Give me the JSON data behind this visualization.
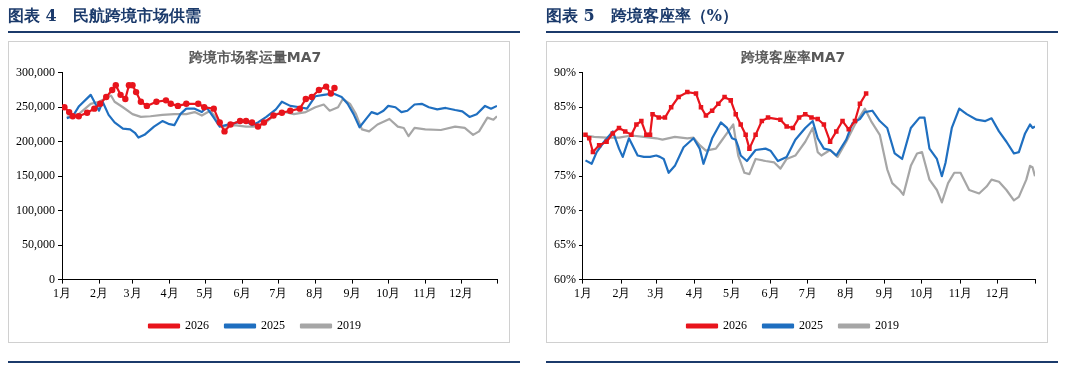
{
  "chart_data": [
    {
      "type": "line",
      "title": "图表 4　民航跨境市场供需",
      "subtitle": "跨境市场客运量MA7",
      "legend": "bottom",
      "xlim": [
        "--01-01",
        "--12-31"
      ],
      "xticks": [
        {
          "value": "--01-01",
          "label": "1月"
        },
        {
          "value": "--02-01",
          "label": "2月"
        },
        {
          "value": "--03-01",
          "label": "3月"
        },
        {
          "value": "--04-01",
          "label": "4月"
        },
        {
          "value": "--05-01",
          "label": "5月"
        },
        {
          "value": "--06-01",
          "label": "6月"
        },
        {
          "value": "--07-01",
          "label": "7月"
        },
        {
          "value": "--08-01",
          "label": "8月"
        },
        {
          "value": "--09-01",
          "label": "9月"
        },
        {
          "value": "--10-01",
          "label": "10月"
        },
        {
          "value": "--11-01",
          "label": "11月"
        },
        {
          "value": "--12-01",
          "label": "12月"
        },
        {
          "value": "--12-31",
          "label": null
        }
      ],
      "ylim": [
        0,
        300000
      ],
      "yticks": [
        {
          "value": 0,
          "label": "0"
        },
        {
          "value": 50000,
          "label": "50,000"
        },
        {
          "value": 100000,
          "label": "100,000"
        },
        {
          "value": 150000,
          "label": "150,000"
        },
        {
          "value": 200000,
          "label": "200,000"
        },
        {
          "value": 250000,
          "label": "250,000"
        },
        {
          "value": 300000,
          "label": "300,000"
        }
      ],
      "series": [
        {
          "name": "2026",
          "color": "#e8141c",
          "marker": "circle",
          "x": [
            "--01-03",
            "--01-07",
            "--01-10",
            "--01-15",
            "--01-22",
            "--01-28",
            "--02-02",
            "--02-07",
            "--02-12",
            "--02-15",
            "--02-19",
            "--02-23",
            "--02-26",
            "--03-01",
            "--03-04",
            "--03-08",
            "--03-13",
            "--03-21",
            "--03-29",
            "--04-02",
            "--04-08",
            "--04-15",
            "--04-25",
            "--04-30",
            "--05-08",
            "--05-13",
            "--05-17",
            "--05-22",
            "--05-30",
            "--06-04",
            "--06-09",
            "--06-14",
            "--06-19",
            "--06-27",
            "--07-04",
            "--07-11",
            "--07-19",
            "--07-24",
            "--07-29",
            "--08-04",
            "--08-10",
            "--08-14",
            "--08-17"
          ],
          "values": [
            250000,
            243000,
            237000,
            237000,
            242000,
            248000,
            255000,
            265000,
            275000,
            282000,
            268000,
            262000,
            282000,
            282000,
            272000,
            258000,
            252000,
            258000,
            260000,
            255000,
            252000,
            255000,
            255000,
            250000,
            248000,
            228000,
            215000,
            225000,
            230000,
            230000,
            228000,
            222000,
            228000,
            238000,
            242000,
            245000,
            248000,
            262000,
            265000,
            275000,
            280000,
            270000,
            278000
          ]
        },
        {
          "name": "2025",
          "color": "#1f6fc0",
          "marker": "none",
          "x": [
            "--01-05",
            "--01-10",
            "--01-15",
            "--01-25",
            "--02-01",
            "--02-04",
            "--02-09",
            "--02-14",
            "--02-21",
            "--02-27",
            "--03-03",
            "--03-06",
            "--03-11",
            "--03-19",
            "--03-26",
            "--03-31",
            "--04-05",
            "--04-10",
            "--04-15",
            "--04-22",
            "--04-28",
            "--05-02",
            "--05-08",
            "--05-13",
            "--05-20",
            "--05-28",
            "--06-04",
            "--06-09",
            "--06-14",
            "--06-21",
            "--06-29",
            "--07-04",
            "--07-11",
            "--07-19",
            "--07-25",
            "--08-01",
            "--08-08",
            "--08-16",
            "--08-23",
            "--08-28",
            "--09-02",
            "--09-07",
            "--09-12",
            "--09-17",
            "--09-22",
            "--09-27",
            "--10-01",
            "--10-07",
            "--10-12",
            "--10-17",
            "--10-23",
            "--10-29",
            "--11-04",
            "--11-11",
            "--11-18",
            "--11-26",
            "--12-02",
            "--12-08",
            "--12-14",
            "--12-21",
            "--12-26",
            "--12-31"
          ],
          "values": [
            234000,
            237000,
            251000,
            268000,
            245000,
            258000,
            239000,
            228000,
            219000,
            218000,
            213000,
            206000,
            210000,
            222000,
            230000,
            226000,
            224000,
            240000,
            248000,
            248000,
            243000,
            250000,
            235000,
            222000,
            225000,
            228000,
            230000,
            224000,
            228000,
            236000,
            247000,
            258000,
            252000,
            250000,
            248000,
            266000,
            268000,
            270000,
            265000,
            255000,
            240000,
            221000,
            232000,
            243000,
            240000,
            245000,
            252000,
            250000,
            243000,
            245000,
            254000,
            255000,
            250000,
            247000,
            249000,
            246000,
            244000,
            236000,
            240000,
            252000,
            248000,
            252000
          ]
        },
        {
          "name": "2019",
          "color": "#a6a6a6",
          "marker": "none",
          "x": [
            "--01-05",
            "--01-15",
            "--01-25",
            "--02-01",
            "--02-11",
            "--02-14",
            "--02-21",
            "--03-01",
            "--03-08",
            "--03-16",
            "--03-26",
            "--04-05",
            "--04-15",
            "--04-22",
            "--04-28",
            "--05-05",
            "--05-10",
            "--05-15",
            "--05-25",
            "--06-04",
            "--06-11",
            "--06-19",
            "--06-29",
            "--07-07",
            "--07-14",
            "--07-24",
            "--08-01",
            "--08-08",
            "--08-13",
            "--08-20",
            "--08-24",
            "--08-30",
            "--09-04",
            "--09-09",
            "--09-15",
            "--09-22",
            "--10-02",
            "--10-09",
            "--10-14",
            "--10-18",
            "--10-23",
            "--11-01",
            "--11-14",
            "--11-26",
            "--12-04",
            "--12-11",
            "--12-16",
            "--12-23",
            "--12-28",
            "--12-31"
          ],
          "values": [
            236000,
            240000,
            255000,
            258000,
            267000,
            258000,
            250000,
            240000,
            236000,
            237000,
            239000,
            240000,
            240000,
            243000,
            238000,
            245000,
            235000,
            222000,
            224000,
            222000,
            222000,
            226000,
            240000,
            243000,
            240000,
            243000,
            250000,
            254000,
            245000,
            250000,
            262000,
            255000,
            240000,
            218000,
            215000,
            225000,
            233000,
            222000,
            220000,
            208000,
            220000,
            218000,
            217000,
            222000,
            220000,
            210000,
            215000,
            235000,
            232000,
            237000
          ]
        }
      ]
    },
    {
      "type": "line",
      "title": "图表 5　跨境客座率（%）",
      "subtitle": "跨境客座率MA7",
      "legend": "bottom",
      "xlim": [
        "--01-01",
        "--12-31"
      ],
      "xticks": [
        {
          "value": "--01-01",
          "label": "1月"
        },
        {
          "value": "--02-01",
          "label": "2月"
        },
        {
          "value": "--03-01",
          "label": "3月"
        },
        {
          "value": "--04-01",
          "label": "4月"
        },
        {
          "value": "--05-01",
          "label": "5月"
        },
        {
          "value": "--06-01",
          "label": "6月"
        },
        {
          "value": "--07-01",
          "label": "7月"
        },
        {
          "value": "--08-01",
          "label": "8月"
        },
        {
          "value": "--09-01",
          "label": "9月"
        },
        {
          "value": "--10-01",
          "label": "10月"
        },
        {
          "value": "--11-01",
          "label": "11月"
        },
        {
          "value": "--12-01",
          "label": "12月"
        },
        {
          "value": "--12-31",
          "label": null
        }
      ],
      "ylim": [
        60,
        90
      ],
      "yticks": [
        {
          "value": 60,
          "label": "60%"
        },
        {
          "value": 65,
          "label": "65%"
        },
        {
          "value": 70,
          "label": "70%"
        },
        {
          "value": 75,
          "label": "75%"
        },
        {
          "value": 80,
          "label": "80%"
        },
        {
          "value": 85,
          "label": "85%"
        },
        {
          "value": 90,
          "label": "90%"
        }
      ],
      "series": [
        {
          "name": "2026",
          "color": "#e8141c",
          "marker": "square",
          "x": [
            "--01-03",
            "--01-06",
            "--01-09",
            "--01-14",
            "--01-20",
            "--01-25",
            "--01-30",
            "--02-04",
            "--02-09",
            "--02-13",
            "--02-17",
            "--02-21",
            "--02-24",
            "--02-26",
            "--03-03",
            "--03-08",
            "--03-13",
            "--03-19",
            "--03-26",
            "--04-02",
            "--04-06",
            "--04-10",
            "--04-15",
            "--04-20",
            "--04-25",
            "--04-30",
            "--05-04",
            "--05-08",
            "--05-12",
            "--05-15",
            "--05-20",
            "--05-25",
            "--05-30",
            "--06-09",
            "--06-14",
            "--06-19",
            "--06-24",
            "--06-29",
            "--07-04",
            "--07-09",
            "--07-14",
            "--07-19",
            "--07-24",
            "--07-29",
            "--08-03",
            "--08-08",
            "--08-12",
            "--08-17"
          ],
          "values": [
            81,
            80.5,
            78.5,
            79.5,
            80,
            81.2,
            82,
            81.5,
            81,
            82.5,
            83,
            81,
            81,
            84,
            83.5,
            83.5,
            85,
            86.5,
            87.2,
            87,
            85,
            83.8,
            84.5,
            85.5,
            86.5,
            86,
            84,
            82.5,
            81,
            79,
            81,
            83,
            83.5,
            83.2,
            82.2,
            82,
            83.5,
            84,
            83.5,
            83.3,
            82.5,
            80,
            81.5,
            83,
            81.8,
            83,
            85.5,
            87
          ]
        },
        {
          "name": "2025",
          "color": "#1f6fc0",
          "marker": "none",
          "x": [
            "--01-03",
            "--01-08",
            "--01-12",
            "--01-18",
            "--01-25",
            "--01-30",
            "--02-02",
            "--02-07",
            "--02-14",
            "--02-19",
            "--02-24",
            "--03-01",
            "--03-04",
            "--03-07",
            "--03-11",
            "--03-16",
            "--03-23",
            "--03-31",
            "--04-05",
            "--04-08",
            "--04-15",
            "--04-22",
            "--04-27",
            "--05-01",
            "--05-04",
            "--05-06",
            "--05-08",
            "--05-13",
            "--05-20",
            "--05-28",
            "--06-01",
            "--06-07",
            "--06-14",
            "--06-21",
            "--06-29",
            "--07-05",
            "--07-09",
            "--07-14",
            "--07-19",
            "--07-24",
            "--08-01",
            "--08-06",
            "--08-12",
            "--08-16",
            "--08-22",
            "--08-28",
            "--09-03",
            "--09-09",
            "--09-15",
            "--09-22",
            "--09-29",
            "--10-03",
            "--10-07",
            "--10-13",
            "--10-17",
            "--10-20",
            "--10-25",
            "--10-31",
            "--11-06",
            "--11-14",
            "--11-21",
            "--11-26",
            "--12-02",
            "--12-08",
            "--12-14",
            "--12-18",
            "--12-23",
            "--12-27",
            "--12-29",
            "--12-31"
          ],
          "values": [
            77.3,
            76.8,
            78.5,
            80,
            81.5,
            79,
            77.8,
            80.5,
            78,
            77.8,
            77.8,
            78,
            77.8,
            77.5,
            75.5,
            76.5,
            79.2,
            80.5,
            79,
            76.8,
            80.5,
            82.8,
            82,
            80.5,
            80.3,
            79.3,
            78,
            77.2,
            78.8,
            79,
            78.7,
            77.2,
            77.8,
            80.3,
            82,
            83,
            80.5,
            79,
            78.8,
            78,
            80.3,
            82.7,
            83.3,
            84.3,
            84.5,
            83,
            82,
            78.3,
            77.5,
            82,
            83.5,
            83.5,
            79,
            77.5,
            75,
            77,
            82,
            84.8,
            84,
            83.2,
            83,
            83.4,
            81.5,
            80,
            78.3,
            78.5,
            81.2,
            82.5,
            82,
            82.2
          ]
        },
        {
          "name": "2019",
          "color": "#a6a6a6",
          "marker": "none",
          "x": [
            "--01-03",
            "--01-10",
            "--01-20",
            "--01-30",
            "--02-09",
            "--02-19",
            "--03-01",
            "--03-06",
            "--03-16",
            "--03-26",
            "--03-31",
            "--04-05",
            "--04-10",
            "--04-18",
            "--04-22",
            "--04-28",
            "--05-02",
            "--05-06",
            "--05-11",
            "--05-15",
            "--05-20",
            "--05-28",
            "--06-04",
            "--06-09",
            "--06-14",
            "--06-21",
            "--06-29",
            "--07-05",
            "--07-09",
            "--07-12",
            "--07-19",
            "--07-25",
            "--08-01",
            "--08-08",
            "--08-16",
            "--08-21",
            "--08-28",
            "--09-03",
            "--09-07",
            "--09-13",
            "--09-16",
            "--09-22",
            "--09-27",
            "--10-01",
            "--10-07",
            "--10-13",
            "--10-17",
            "--10-22",
            "--10-27",
            "--11-01",
            "--11-08",
            "--11-16",
            "--11-22",
            "--11-26",
            "--12-02",
            "--12-08",
            "--12-14",
            "--12-18",
            "--12-24",
            "--12-27",
            "--12-29",
            "--12-31"
          ],
          "values": [
            80.9,
            80.7,
            80.6,
            80.6,
            80.9,
            80.7,
            80.5,
            80.3,
            80.7,
            80.5,
            80.6,
            79.5,
            78.7,
            79,
            80,
            81.5,
            82.5,
            78,
            75.5,
            75.3,
            77.5,
            77.2,
            77,
            76.1,
            77.5,
            78,
            80,
            82,
            78.5,
            78,
            78.8,
            77.8,
            80,
            82.5,
            84.8,
            83,
            81,
            76,
            74,
            73,
            72.3,
            76.5,
            78.3,
            78.5,
            74.5,
            73,
            71.2,
            74,
            75.5,
            75.5,
            73,
            72.5,
            73.5,
            74.5,
            74.2,
            73,
            71.5,
            72,
            74.5,
            76.5,
            76.3,
            75
          ]
        }
      ]
    }
  ]
}
